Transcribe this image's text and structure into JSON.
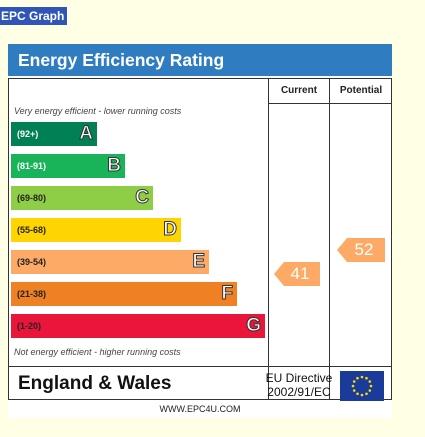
{
  "tag_label": "EPC Graph",
  "title": "Energy Efficiency Rating",
  "columns": {
    "current": "Current",
    "potential": "Potential"
  },
  "note_top": "Very energy efficient - lower running costs",
  "note_bottom": "Not energy efficient - higher running costs",
  "country": "England & Wales",
  "directive_line1": "EU Directive",
  "directive_line2": "2002/91/EC",
  "site": "WWW.EPC4U.COM",
  "chart_data": {
    "type": "bar",
    "title": "Energy Efficiency Rating",
    "bands": [
      {
        "letter": "A",
        "range": "(92+)",
        "color": "#008054",
        "text_color": "#ffffff"
      },
      {
        "letter": "B",
        "range": "(81-91)",
        "color": "#19b459",
        "text_color": "#ffffff"
      },
      {
        "letter": "C",
        "range": "(69-80)",
        "color": "#8dce46",
        "text_color": "#222222"
      },
      {
        "letter": "D",
        "range": "(55-68)",
        "color": "#ffd500",
        "text_color": "#222222"
      },
      {
        "letter": "E",
        "range": "(39-54)",
        "color": "#fcaa65",
        "text_color": "#222222"
      },
      {
        "letter": "F",
        "range": "(21-38)",
        "color": "#ef8023",
        "text_color": "#222222"
      },
      {
        "letter": "G",
        "range": "(1-20)",
        "color": "#e9153b",
        "text_color": "#222222"
      }
    ],
    "current": {
      "value": 41,
      "band": "E",
      "color": "#fcaa65"
    },
    "potential": {
      "value": 52,
      "band": "E",
      "color": "#fcaa65"
    }
  }
}
